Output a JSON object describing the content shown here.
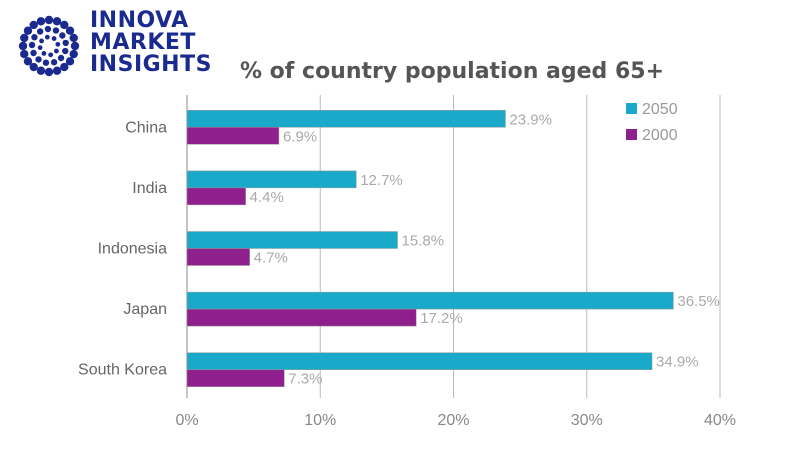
{
  "brand": {
    "lines": [
      "INNOVA",
      "MARKET",
      "INSIGHTS"
    ],
    "color": "#1b2a8f"
  },
  "chart_data": {
    "type": "bar",
    "orientation": "horizontal",
    "title": "% of country population aged 65+",
    "categories": [
      "China",
      "India",
      "Indonesia",
      "Japan",
      "South Korea"
    ],
    "series": [
      {
        "name": "2050",
        "color": "#1aa9c9",
        "values": [
          23.9,
          12.7,
          15.8,
          36.5,
          34.9
        ],
        "labels": [
          "23.9%",
          "12.7%",
          "15.8%",
          "36.5%",
          "34.9%"
        ]
      },
      {
        "name": "2000",
        "color": "#8e1f8c",
        "values": [
          6.9,
          4.4,
          4.7,
          17.2,
          7.3
        ],
        "labels": [
          "6.9%",
          "4.4%",
          "4.7%",
          "17.2%",
          "7.3%"
        ]
      }
    ],
    "xlim": [
      0,
      40
    ],
    "xticks": [
      "0%",
      "10%",
      "20%",
      "30%",
      "40%"
    ],
    "grid": true,
    "legend": "top-right"
  }
}
